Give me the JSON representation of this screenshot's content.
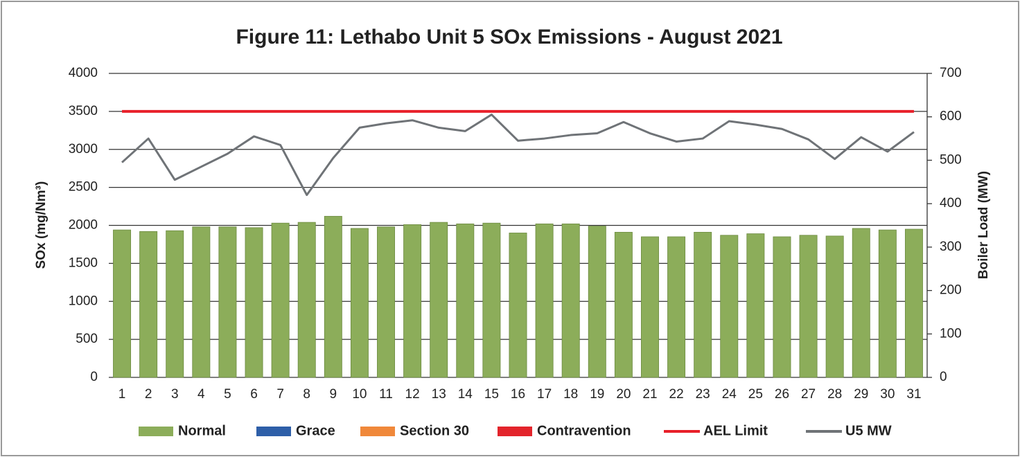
{
  "chart_data": {
    "type": "bar",
    "title": "Figure 11: Lethabo Unit 5 SOx Emissions -  August 2021",
    "y_label": "SOx (mg/Nm³)",
    "y2_label": "Boiler Load (MW)",
    "categories": [
      "1",
      "2",
      "3",
      "4",
      "5",
      "6",
      "7",
      "8",
      "9",
      "10",
      "11",
      "12",
      "13",
      "14",
      "15",
      "16",
      "17",
      "18",
      "19",
      "20",
      "21",
      "22",
      "23",
      "24",
      "25",
      "26",
      "27",
      "28",
      "29",
      "30",
      "31"
    ],
    "ylim": [
      0,
      4000
    ],
    "yticks": [
      0,
      500,
      1000,
      1500,
      2000,
      2500,
      3000,
      3500,
      4000
    ],
    "y2lim": [
      0,
      700
    ],
    "y2ticks": [
      0,
      100,
      200,
      300,
      400,
      500,
      600,
      700
    ],
    "grid": true,
    "legend": "bottom",
    "series": [
      {
        "name": "Normal",
        "type": "bar",
        "color": "#8cad5a",
        "values": [
          1940,
          1920,
          1930,
          1980,
          1980,
          1970,
          2030,
          2040,
          2120,
          1960,
          1980,
          2010,
          2040,
          2020,
          2030,
          1900,
          2020,
          2020,
          1990,
          1910,
          1850,
          1850,
          1910,
          1870,
          1890,
          1850,
          1870,
          1860,
          1960,
          1940,
          1950
        ]
      },
      {
        "name": "Grace",
        "type": "bar",
        "color": "#2e5fa8",
        "values": [
          0,
          0,
          0,
          0,
          0,
          0,
          0,
          0,
          0,
          0,
          0,
          0,
          0,
          0,
          0,
          0,
          0,
          0,
          0,
          0,
          0,
          0,
          0,
          0,
          0,
          0,
          0,
          0,
          0,
          0,
          0
        ]
      },
      {
        "name": "Section 30",
        "type": "bar",
        "color": "#f0883a",
        "values": [
          0,
          0,
          0,
          0,
          0,
          0,
          0,
          0,
          0,
          0,
          0,
          0,
          0,
          0,
          0,
          0,
          0,
          0,
          0,
          0,
          0,
          0,
          0,
          0,
          0,
          0,
          0,
          0,
          0,
          0,
          0
        ]
      },
      {
        "name": "Contravention",
        "type": "bar",
        "color": "#e3242b",
        "values": [
          0,
          0,
          0,
          0,
          0,
          0,
          0,
          0,
          0,
          0,
          0,
          0,
          0,
          0,
          0,
          0,
          0,
          0,
          0,
          0,
          0,
          0,
          0,
          0,
          0,
          0,
          0,
          0,
          0,
          0,
          0
        ]
      },
      {
        "name": "AEL Limit",
        "type": "line",
        "color": "#e8202a",
        "values": [
          3500,
          3500,
          3500,
          3500,
          3500,
          3500,
          3500,
          3500,
          3500,
          3500,
          3500,
          3500,
          3500,
          3500,
          3500,
          3500,
          3500,
          3500,
          3500,
          3500,
          3500,
          3500,
          3500,
          3500,
          3500,
          3500,
          3500,
          3500,
          3500,
          3500,
          3500
        ]
      },
      {
        "name": "U5 MW",
        "type": "line",
        "axis": "y2",
        "color": "#6f7377",
        "values": [
          495,
          550,
          455,
          485,
          515,
          555,
          535,
          420,
          505,
          575,
          585,
          592,
          575,
          567,
          605,
          545,
          550,
          558,
          562,
          588,
          562,
          543,
          550,
          590,
          582,
          572,
          548,
          503,
          553,
          520,
          565
        ]
      }
    ]
  }
}
